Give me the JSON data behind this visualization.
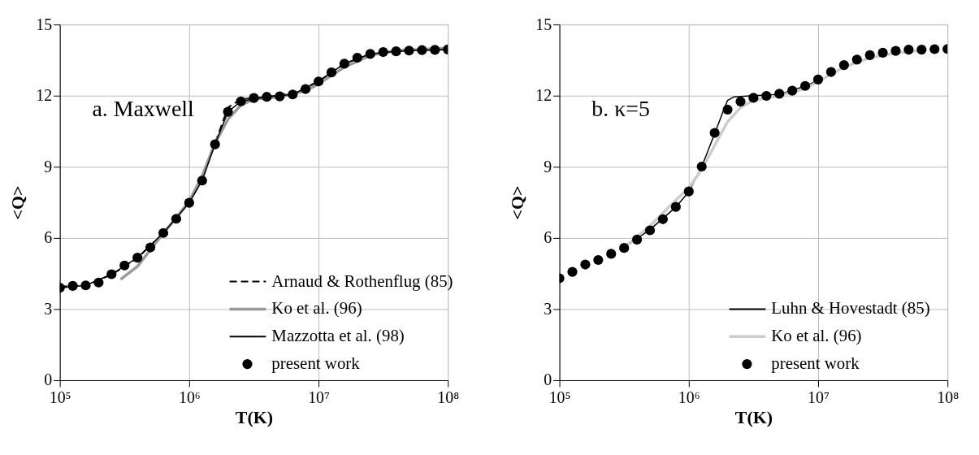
{
  "chart_data": [
    {
      "type": "line",
      "xlabel": "T(K)",
      "ylabel": "<Q>",
      "annotations": [
        "a. Maxwell"
      ],
      "log": "x",
      "grid": true,
      "legend": "bottom right",
      "xlim": [
        100000,
        100000000
      ],
      "xticks": [
        {
          "value": 100000,
          "label": "10⁵"
        },
        {
          "value": 1000000,
          "label": "10⁶"
        },
        {
          "value": 10000000,
          "label": "10⁷"
        },
        {
          "value": 100000000,
          "label": "10⁸"
        }
      ],
      "ylim": [
        0,
        15
      ],
      "yticks": [
        0,
        3,
        6,
        9,
        12,
        15
      ],
      "series": [
        {
          "name": "Arnaud & Rothenflug (85)",
          "line_style": "dashed",
          "color": "#000000",
          "x": [
            100000,
            158500,
            251200,
            398100,
            631000,
            1000000,
            1259000,
            1585000,
            1995000,
            2512000,
            3981000,
            6310000,
            10000000,
            15850000,
            25120000,
            39810000,
            63100000,
            100000000
          ],
          "values": [
            3.95,
            4.0,
            4.45,
            5.15,
            6.2,
            7.5,
            8.45,
            10.0,
            11.5,
            11.85,
            11.95,
            12.1,
            12.6,
            13.35,
            13.75,
            13.87,
            13.92,
            13.95
          ]
        },
        {
          "name": "Ko et al. (96)",
          "line_style": "solid",
          "color": "#999999",
          "x": [
            295000,
            398100,
            501200,
            631000,
            794300,
            1000000,
            1259000,
            1585000,
            1995000,
            2512000,
            3162000,
            5012000,
            7943000,
            10000000,
            15850000,
            25120000,
            39810000,
            100000000
          ],
          "values": [
            4.25,
            4.8,
            5.5,
            6.2,
            6.85,
            7.55,
            8.6,
            10.0,
            11.0,
            11.6,
            11.85,
            11.95,
            12.2,
            12.5,
            13.2,
            13.7,
            13.9,
            14.0
          ]
        },
        {
          "name": "Mazzotta et al. (98)",
          "line_style": "solid",
          "color": "#000000",
          "x": [
            100000,
            158500,
            251200,
            398100,
            631000,
            1000000,
            1259000,
            1585000,
            1995000,
            2512000,
            3981000,
            6310000,
            10000000,
            15850000,
            25120000,
            39810000,
            63100000,
            100000000
          ],
          "values": [
            3.9,
            4.0,
            4.47,
            5.17,
            6.21,
            7.48,
            8.42,
            9.95,
            11.32,
            11.76,
            11.95,
            12.05,
            12.6,
            13.35,
            13.76,
            13.87,
            13.92,
            13.95
          ]
        },
        {
          "name": "present work",
          "type": "scatter",
          "marker": "circle",
          "color": "#000000",
          "x": [
            100000,
            125900,
            158500,
            199500,
            251200,
            316200,
            398100,
            501200,
            631000,
            794300,
            1000000,
            1259000,
            1585000,
            1995000,
            2512000,
            3162000,
            3981000,
            5012000,
            6310000,
            7943000,
            10000000,
            12590000,
            15850000,
            19950000,
            25120000,
            31620000,
            39810000,
            50120000,
            63100000,
            79430000,
            100000000
          ],
          "values": [
            3.9,
            3.98,
            4.0,
            4.12,
            4.47,
            4.84,
            5.17,
            5.6,
            6.21,
            6.81,
            7.48,
            8.42,
            9.95,
            11.32,
            11.76,
            11.9,
            11.95,
            11.97,
            12.05,
            12.28,
            12.6,
            12.98,
            13.35,
            13.6,
            13.76,
            13.84,
            13.87,
            13.9,
            13.92,
            13.93,
            13.95
          ]
        }
      ]
    },
    {
      "type": "line",
      "xlabel": "T(K)",
      "ylabel": "<Q>",
      "annotations": [
        "b. κ=5"
      ],
      "log": "x",
      "grid": true,
      "legend": "bottom right",
      "xlim": [
        100000,
        100000000
      ],
      "xticks": [
        {
          "value": 100000,
          "label": "10⁵"
        },
        {
          "value": 1000000,
          "label": "10⁶"
        },
        {
          "value": 10000000,
          "label": "10⁷"
        },
        {
          "value": 100000000,
          "label": "10⁸"
        }
      ],
      "ylim": [
        0,
        15
      ],
      "yticks": [
        0,
        3,
        6,
        9,
        12,
        15
      ],
      "series": [
        {
          "name": "Luhn & Hovestadt (85)",
          "line_style": "solid",
          "color": "#000000",
          "x": [
            316200,
            501200,
            794300,
            933000,
            1000000,
            1259000,
            1585000,
            1862000,
            1995000,
            2239000,
            3162000,
            5012000,
            7943000,
            10000000
          ],
          "values": [
            5.6,
            6.35,
            7.3,
            7.75,
            7.95,
            9.0,
            10.4,
            11.4,
            11.8,
            11.95,
            12.0,
            12.05,
            12.4,
            12.65
          ]
        },
        {
          "name": "Ko et al. (96)",
          "line_style": "solid",
          "color": "#cccccc",
          "x": [
            316200,
            501200,
            794300,
            1000000,
            1259000,
            1585000,
            1995000,
            2512000,
            3162000,
            5012000,
            7943000,
            10000000,
            15850000,
            25120000,
            39810000,
            63100000
          ],
          "values": [
            5.6,
            6.5,
            7.6,
            8.1,
            8.9,
            9.9,
            10.9,
            11.5,
            11.8,
            12.0,
            12.3,
            12.6,
            13.2,
            13.6,
            13.8,
            13.9
          ]
        },
        {
          "name": "present work",
          "type": "scatter",
          "marker": "circle",
          "color": "#000000",
          "x": [
            100000,
            125900,
            158500,
            199500,
            251200,
            316200,
            398100,
            501200,
            631000,
            794300,
            1000000,
            1259000,
            1585000,
            1995000,
            2512000,
            3162000,
            3981000,
            5012000,
            6310000,
            7943000,
            10000000,
            12590000,
            15850000,
            19950000,
            25120000,
            31620000,
            39810000,
            50120000,
            63100000,
            79430000,
            100000000
          ],
          "values": [
            4.3,
            4.57,
            4.88,
            5.07,
            5.33,
            5.58,
            5.93,
            6.32,
            6.79,
            7.31,
            7.96,
            9.01,
            10.43,
            11.41,
            11.75,
            11.91,
            11.99,
            12.08,
            12.21,
            12.41,
            12.68,
            13.0,
            13.29,
            13.52,
            13.71,
            13.81,
            13.89,
            13.94,
            13.94,
            13.96,
            13.97
          ]
        }
      ]
    }
  ]
}
